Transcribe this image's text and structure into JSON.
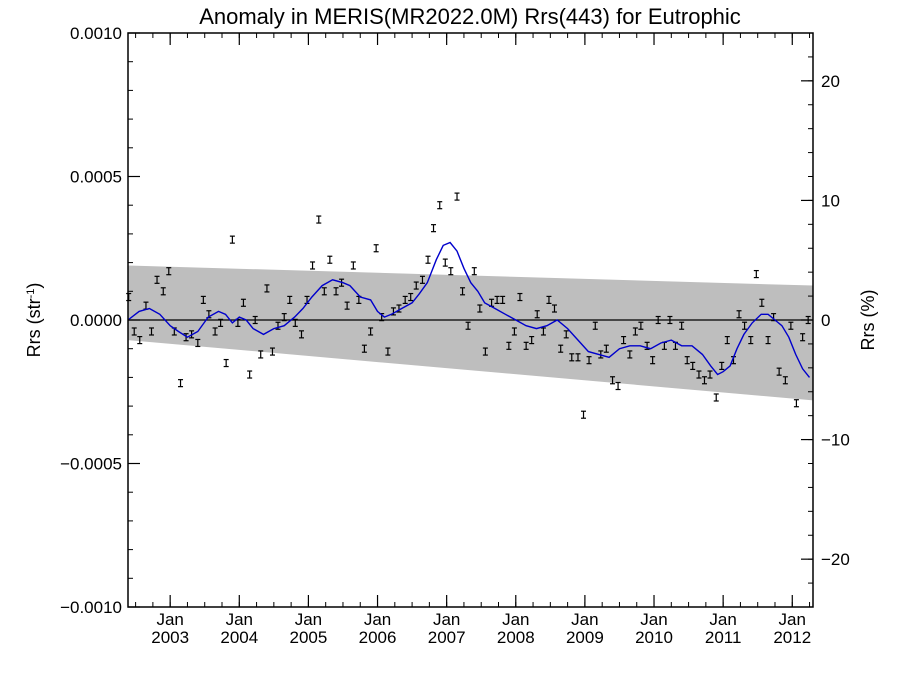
{
  "chart_data": {
    "type": "line",
    "title": "Anomaly in MERIS(MR2022.0M) Rrs(443) for Eutrophic",
    "ylabel_left": {
      "base": "Rrs (str",
      "sup": "-1",
      "end": ")"
    },
    "ylabel_right": "Rrs (%)",
    "ylim_left": [
      -0.001,
      0.001
    ],
    "ylim_right": [
      -24.0,
      24.0
    ],
    "xlim": [
      2002.39,
      2012.3
    ],
    "left_ticks": [
      {
        "value": 0.001,
        "label": "0.0010"
      },
      {
        "value": 0.0005,
        "label": "0.0005"
      },
      {
        "value": 0.0,
        "label": "0.0000"
      },
      {
        "value": -0.0005,
        "label": "−0.0005"
      },
      {
        "value": -0.001,
        "label": "−0.0010"
      }
    ],
    "right_ticks": [
      {
        "value": 20,
        "label": "20"
      },
      {
        "value": 10,
        "label": "10"
      },
      {
        "value": 0,
        "label": "0"
      },
      {
        "value": -10,
        "label": "−10"
      },
      {
        "value": -20,
        "label": "−20"
      }
    ],
    "x_ticks": [
      {
        "value": 2003.0,
        "month": "Jan",
        "year": "2003"
      },
      {
        "value": 2004.0,
        "month": "Jan",
        "year": "2004"
      },
      {
        "value": 2005.0,
        "month": "Jan",
        "year": "2005"
      },
      {
        "value": 2006.0,
        "month": "Jan",
        "year": "2006"
      },
      {
        "value": 2007.0,
        "month": "Jan",
        "year": "2007"
      },
      {
        "value": 2008.0,
        "month": "Jan",
        "year": "2008"
      },
      {
        "value": 2009.0,
        "month": "Jan",
        "year": "2009"
      },
      {
        "value": 2010.0,
        "month": "Jan",
        "year": "2010"
      },
      {
        "value": 2011.0,
        "month": "Jan",
        "year": "2011"
      },
      {
        "value": 2012.0,
        "month": "Jan",
        "year": "2012"
      }
    ],
    "band": {
      "start": [
        2002.39,
        0.00019,
        -7e-05
      ],
      "end": [
        2012.3,
        0.00012,
        -0.00028
      ],
      "color": "#bebebe"
    },
    "zero_line": true,
    "colors": {
      "smooth_line": "#0000cc",
      "points": "#000000",
      "band": "#bebebe"
    },
    "series": [
      {
        "style": "points-with-error-bars",
        "x": [
          2002.4,
          2002.48,
          2002.56,
          2002.65,
          2002.73,
          2002.81,
          2002.9,
          2002.98,
          2003.06,
          2003.15,
          2003.23,
          2003.31,
          2003.4,
          2003.48,
          2003.56,
          2003.65,
          2003.73,
          2003.81,
          2003.9,
          2003.98,
          2004.06,
          2004.15,
          2004.23,
          2004.31,
          2004.4,
          2004.48,
          2004.56,
          2004.65,
          2004.73,
          2004.81,
          2004.9,
          2004.98,
          2005.06,
          2005.15,
          2005.23,
          2005.31,
          2005.4,
          2005.48,
          2005.56,
          2005.65,
          2005.73,
          2005.81,
          2005.9,
          2005.98,
          2006.06,
          2006.15,
          2006.23,
          2006.31,
          2006.4,
          2006.48,
          2006.56,
          2006.65,
          2006.73,
          2006.81,
          2006.9,
          2006.98,
          2007.06,
          2007.15,
          2007.23,
          2007.31,
          2007.4,
          2007.48,
          2007.56,
          2007.65,
          2007.73,
          2007.81,
          2007.9,
          2007.98,
          2008.06,
          2008.15,
          2008.23,
          2008.31,
          2008.4,
          2008.48,
          2008.56,
          2008.65,
          2008.73,
          2008.81,
          2008.9,
          2008.98,
          2009.06,
          2009.15,
          2009.23,
          2009.31,
          2009.4,
          2009.48,
          2009.56,
          2009.65,
          2009.73,
          2009.81,
          2009.9,
          2009.98,
          2010.06,
          2010.15,
          2010.23,
          2010.31,
          2010.4,
          2010.48,
          2010.56,
          2010.65,
          2010.73,
          2010.81,
          2010.9,
          2010.98,
          2011.06,
          2011.15,
          2011.23,
          2011.31,
          2011.4,
          2011.48,
          2011.56,
          2011.65,
          2011.73,
          2011.81,
          2011.9,
          2011.98,
          2012.06,
          2012.15,
          2012.23
        ],
        "y": [
          8e-05,
          -4e-05,
          -7e-05,
          5e-05,
          -4e-05,
          0.00014,
          0.0001,
          0.00017,
          -4e-05,
          -0.00022,
          -6e-05,
          -5e-05,
          -8e-05,
          7e-05,
          2e-05,
          -4e-05,
          -1e-05,
          -0.00015,
          0.00028,
          -1e-05,
          6e-05,
          -0.00019,
          0.0,
          -0.00012,
          0.00011,
          -0.00011,
          -2e-05,
          1e-05,
          7e-05,
          -1e-05,
          -5e-05,
          7e-05,
          0.00019,
          0.00035,
          0.0001,
          0.00021,
          0.0001,
          0.00013,
          5e-05,
          0.00019,
          7e-05,
          -0.0001,
          -4e-05,
          0.00025,
          1e-05,
          -0.00011,
          3e-05,
          4e-05,
          7e-05,
          8e-05,
          0.00012,
          0.00014,
          0.00021,
          0.00032,
          0.0004,
          0.0002,
          0.00017,
          0.00043,
          0.0001,
          -2e-05,
          0.00017,
          4e-05,
          -0.00011,
          6e-05,
          7e-05,
          7e-05,
          -9e-05,
          -4e-05,
          8e-05,
          -9e-05,
          -7e-05,
          2e-05,
          -4e-05,
          7e-05,
          4e-05,
          -0.0001,
          -5e-05,
          -0.00013,
          -0.00013,
          -0.00033,
          -0.00014,
          -2e-05,
          -0.00012,
          -0.0001,
          -0.00021,
          -0.00023,
          -7e-05,
          -0.00012,
          -4e-05,
          -2e-05,
          -9e-05,
          -0.00014,
          0.0,
          -9e-05,
          0.0,
          -9e-05,
          -2e-05,
          -0.00014,
          -0.00016,
          -0.00019,
          -0.00021,
          -0.00019,
          -0.00027,
          -0.00016,
          -7e-05,
          -0.00014,
          2e-05,
          -2e-05,
          -7e-05,
          0.00016,
          6e-05,
          -7e-05,
          1e-05,
          -0.00018,
          -0.00021,
          -2e-05,
          -0.00029,
          -6e-05,
          0.0
        ]
      },
      {
        "style": "smoothed-line",
        "x": [
          2002.39,
          2002.55,
          2002.7,
          2002.85,
          2003.0,
          2003.12,
          2003.25,
          2003.4,
          2003.55,
          2003.7,
          2003.8,
          2003.9,
          2004.0,
          2004.1,
          2004.2,
          2004.35,
          2004.5,
          2004.65,
          2004.8,
          2004.92,
          2005.05,
          2005.2,
          2005.35,
          2005.5,
          2005.6,
          2005.75,
          2005.9,
          2006.0,
          2006.1,
          2006.2,
          2006.35,
          2006.5,
          2006.6,
          2006.72,
          2006.85,
          2006.95,
          2007.05,
          2007.15,
          2007.25,
          2007.35,
          2007.45,
          2007.55,
          2007.7,
          2007.85,
          2008.0,
          2008.15,
          2008.3,
          2008.45,
          2008.6,
          2008.75,
          2008.9,
          2009.05,
          2009.2,
          2009.35,
          2009.5,
          2009.65,
          2009.8,
          2009.95,
          2010.1,
          2010.25,
          2010.4,
          2010.55,
          2010.7,
          2010.82,
          2010.92,
          2011.0,
          2011.1,
          2011.2,
          2011.3,
          2011.42,
          2011.55,
          2011.65,
          2011.75,
          2011.85,
          2011.95,
          2012.05,
          2012.15,
          2012.25
        ],
        "y": [
          0.0,
          3e-05,
          4e-05,
          2e-05,
          -2e-05,
          -4e-05,
          -6e-05,
          -4e-05,
          1e-05,
          3e-05,
          2e-05,
          -1e-05,
          1e-05,
          0.0,
          -3e-05,
          -5e-05,
          -3e-05,
          -2e-05,
          1e-05,
          4e-05,
          8e-05,
          0.00012,
          0.00014,
          0.00013,
          0.00012,
          8e-05,
          7e-05,
          3e-05,
          1e-05,
          2e-05,
          4e-05,
          6e-05,
          9e-05,
          0.00013,
          0.00021,
          0.00026,
          0.00027,
          0.00024,
          0.00018,
          0.00013,
          0.0001,
          6e-05,
          4e-05,
          2e-05,
          0.0,
          -2e-05,
          -3e-05,
          -2e-05,
          0.0,
          -3e-05,
          -7e-05,
          -0.00011,
          -0.00012,
          -0.00013,
          -0.0001,
          -9e-05,
          -9e-05,
          -0.0001,
          -8e-05,
          -7e-05,
          -9e-05,
          -9e-05,
          -0.00012,
          -0.00016,
          -0.00019,
          -0.00018,
          -0.00016,
          -0.0001,
          -5e-05,
          -1e-05,
          2e-05,
          2e-05,
          0.0,
          -2e-05,
          -6e-05,
          -0.00012,
          -0.00017,
          -0.0002
        ]
      }
    ]
  }
}
